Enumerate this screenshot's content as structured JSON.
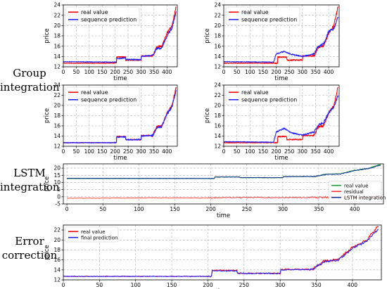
{
  "labels": {
    "group": [
      "Group",
      "integration"
    ],
    "lstm": [
      "LSTM",
      "integration"
    ],
    "error": [
      "Error",
      "correction"
    ]
  },
  "colors": {
    "real": "#ff0000",
    "prediction": "#2424ff",
    "residual": "#ff3333",
    "lstm_real": "#1f9e3a",
    "lstm_pred": "#1a3a9a",
    "grid": "#b0b0b0"
  },
  "chart_data": [
    {
      "id": "group-1",
      "type": "line",
      "xlabel": "time",
      "ylabel": "price",
      "xlim": [
        0,
        440
      ],
      "ylim": [
        12,
        24
      ],
      "xticks": [
        0,
        50,
        100,
        150,
        200,
        250,
        300,
        350,
        400
      ],
      "yticks": [
        12,
        14,
        16,
        18,
        20,
        22,
        24
      ],
      "grid": true,
      "legend": "top-left",
      "series": [
        {
          "name": "real value",
          "role": "real",
          "anchors": [
            [
              0,
              12.7
            ],
            [
              205,
              12.7
            ],
            [
              206,
              13.9
            ],
            [
              240,
              13.9
            ],
            [
              241,
              13.3
            ],
            [
              300,
              13.3
            ],
            [
              301,
              14.1
            ],
            [
              345,
              14.1
            ],
            [
              360,
              15.8
            ],
            [
              380,
              16.0
            ],
            [
              400,
              18.5
            ],
            [
              420,
              20.0
            ],
            [
              435,
              23.6
            ]
          ]
        },
        {
          "name": "sequence prediction",
          "role": "prediction",
          "anchors": [
            [
              0,
              13.0
            ],
            [
              205,
              12.9
            ],
            [
              206,
              13.6
            ],
            [
              240,
              13.7
            ],
            [
              241,
              13.4
            ],
            [
              300,
              13.4
            ],
            [
              301,
              14.0
            ],
            [
              345,
              14.2
            ],
            [
              360,
              15.5
            ],
            [
              380,
              15.7
            ],
            [
              400,
              18.0
            ],
            [
              420,
              19.6
            ],
            [
              435,
              22.5
            ]
          ]
        }
      ]
    },
    {
      "id": "group-2",
      "type": "line",
      "xlabel": "time",
      "ylabel": "price",
      "xlim": [
        0,
        440
      ],
      "ylim": [
        12,
        24
      ],
      "xticks": [
        0,
        50,
        100,
        150,
        200,
        250,
        300,
        350,
        400
      ],
      "yticks": [
        12,
        14,
        16,
        18,
        20,
        22,
        24
      ],
      "grid": true,
      "legend": "top-left",
      "series": [
        {
          "name": "real value",
          "role": "real",
          "anchors": [
            [
              0,
              12.7
            ],
            [
              205,
              12.7
            ],
            [
              206,
              13.9
            ],
            [
              240,
              13.9
            ],
            [
              241,
              13.3
            ],
            [
              300,
              13.3
            ],
            [
              301,
              14.1
            ],
            [
              345,
              14.1
            ],
            [
              360,
              15.8
            ],
            [
              380,
              16.0
            ],
            [
              400,
              18.5
            ],
            [
              420,
              20.0
            ],
            [
              435,
              23.6
            ]
          ]
        },
        {
          "name": "sequence prediction",
          "role": "prediction",
          "anchors": [
            [
              0,
              13.0
            ],
            [
              190,
              12.9
            ],
            [
              200,
              14.5
            ],
            [
              230,
              15.0
            ],
            [
              260,
              14.4
            ],
            [
              300,
              14.0
            ],
            [
              345,
              14.5
            ],
            [
              360,
              16.0
            ],
            [
              380,
              16.4
            ],
            [
              400,
              18.8
            ],
            [
              420,
              19.4
            ],
            [
              435,
              21.5
            ]
          ]
        }
      ]
    },
    {
      "id": "group-3",
      "type": "line",
      "xlabel": "time",
      "ylabel": "price",
      "xlim": [
        0,
        440
      ],
      "ylim": [
        12,
        24
      ],
      "xticks": [
        0,
        50,
        100,
        150,
        200,
        250,
        300,
        350,
        400
      ],
      "yticks": [
        12,
        14,
        16,
        18,
        20,
        22,
        24
      ],
      "grid": true,
      "legend": "top-left",
      "series": [
        {
          "name": "real value",
          "role": "real",
          "anchors": [
            [
              0,
              12.7
            ],
            [
              205,
              12.7
            ],
            [
              206,
              13.9
            ],
            [
              240,
              13.9
            ],
            [
              241,
              13.3
            ],
            [
              300,
              13.3
            ],
            [
              301,
              14.1
            ],
            [
              345,
              14.1
            ],
            [
              360,
              15.8
            ],
            [
              380,
              16.0
            ],
            [
              400,
              18.5
            ],
            [
              420,
              20.0
            ],
            [
              435,
              23.6
            ]
          ]
        },
        {
          "name": "sequence prediction",
          "role": "prediction",
          "anchors": [
            [
              0,
              12.7
            ],
            [
              205,
              12.7
            ],
            [
              206,
              13.8
            ],
            [
              240,
              13.8
            ],
            [
              241,
              13.3
            ],
            [
              300,
              13.3
            ],
            [
              301,
              14.0
            ],
            [
              345,
              14.1
            ],
            [
              360,
              15.6
            ],
            [
              380,
              15.9
            ],
            [
              400,
              18.3
            ],
            [
              420,
              19.8
            ],
            [
              435,
              22.8
            ]
          ]
        }
      ]
    },
    {
      "id": "group-4",
      "type": "line",
      "xlabel": "time",
      "ylabel": "price",
      "xlim": [
        0,
        440
      ],
      "ylim": [
        12,
        24
      ],
      "xticks": [
        0,
        50,
        100,
        150,
        200,
        250,
        300,
        350,
        400
      ],
      "yticks": [
        12,
        14,
        16,
        18,
        20,
        22,
        24
      ],
      "grid": true,
      "legend": "top-left",
      "series": [
        {
          "name": "real value",
          "role": "real",
          "anchors": [
            [
              0,
              12.7
            ],
            [
              205,
              12.7
            ],
            [
              206,
              13.9
            ],
            [
              240,
              13.9
            ],
            [
              241,
              13.3
            ],
            [
              300,
              13.3
            ],
            [
              301,
              14.1
            ],
            [
              345,
              14.1
            ],
            [
              360,
              15.8
            ],
            [
              380,
              16.0
            ],
            [
              400,
              18.5
            ],
            [
              420,
              20.0
            ],
            [
              435,
              23.6
            ]
          ]
        },
        {
          "name": "sequence prediction",
          "role": "prediction",
          "anchors": [
            [
              0,
              12.9
            ],
            [
              190,
              12.8
            ],
            [
              200,
              14.8
            ],
            [
              230,
              15.5
            ],
            [
              260,
              14.6
            ],
            [
              300,
              14.2
            ],
            [
              345,
              14.8
            ],
            [
              360,
              16.2
            ],
            [
              380,
              16.6
            ],
            [
              400,
              18.6
            ],
            [
              420,
              19.7
            ],
            [
              435,
              21.8
            ]
          ]
        }
      ]
    },
    {
      "id": "lstm",
      "type": "line",
      "xlabel": "time",
      "ylabel": "price",
      "xlim": [
        -5,
        440
      ],
      "ylim": [
        -5,
        23
      ],
      "xticks": [
        0,
        50,
        100,
        150,
        200,
        250,
        300,
        350,
        400
      ],
      "yticks": [
        -5,
        0,
        5,
        10,
        15,
        20
      ],
      "grid": true,
      "legend": "bottom-right",
      "series": [
        {
          "name": "real value",
          "role": "lstm_real",
          "anchors": [
            [
              0,
              12.7
            ],
            [
              205,
              12.7
            ],
            [
              206,
              13.9
            ],
            [
              240,
              13.9
            ],
            [
              241,
              13.3
            ],
            [
              300,
              13.3
            ],
            [
              301,
              14.1
            ],
            [
              345,
              14.1
            ],
            [
              360,
              15.8
            ],
            [
              380,
              16.0
            ],
            [
              400,
              18.5
            ],
            [
              420,
              20.0
            ],
            [
              435,
              22.5
            ]
          ]
        },
        {
          "name": "residual",
          "role": "residual",
          "anchors": [
            [
              0,
              -1.0
            ],
            [
              100,
              -0.8
            ],
            [
              200,
              -0.8
            ],
            [
              250,
              -0.5
            ],
            [
              300,
              -0.7
            ],
            [
              350,
              -0.4
            ],
            [
              400,
              -0.6
            ],
            [
              435,
              -0.3
            ]
          ]
        },
        {
          "name": "LSTM integration",
          "role": "lstm_pred",
          "anchors": [
            [
              0,
              12.9
            ],
            [
              205,
              12.8
            ],
            [
              206,
              13.8
            ],
            [
              240,
              13.8
            ],
            [
              241,
              13.4
            ],
            [
              300,
              13.4
            ],
            [
              301,
              14.0
            ],
            [
              345,
              14.2
            ],
            [
              360,
              15.6
            ],
            [
              380,
              15.9
            ],
            [
              400,
              18.3
            ],
            [
              420,
              19.8
            ],
            [
              435,
              22.0
            ]
          ]
        }
      ]
    },
    {
      "id": "error",
      "type": "line",
      "xlabel": "time",
      "ylabel": "price",
      "xlim": [
        0,
        440
      ],
      "ylim": [
        12,
        23
      ],
      "xticks": [
        0,
        50,
        100,
        150,
        200,
        250,
        300,
        350,
        400
      ],
      "yticks": [
        12,
        14,
        16,
        18,
        20,
        22
      ],
      "grid": true,
      "legend": "top-left",
      "series": [
        {
          "name": "real value",
          "role": "real",
          "anchors": [
            [
              0,
              12.7
            ],
            [
              205,
              12.7
            ],
            [
              206,
              13.9
            ],
            [
              240,
              13.9
            ],
            [
              241,
              13.3
            ],
            [
              300,
              13.3
            ],
            [
              301,
              14.1
            ],
            [
              345,
              14.1
            ],
            [
              360,
              15.8
            ],
            [
              380,
              16.0
            ],
            [
              400,
              18.5
            ],
            [
              420,
              20.0
            ],
            [
              435,
              22.8
            ]
          ]
        },
        {
          "name": "final prediction",
          "role": "prediction",
          "anchors": [
            [
              0,
              12.7
            ],
            [
              205,
              12.7
            ],
            [
              206,
              13.8
            ],
            [
              240,
              13.8
            ],
            [
              241,
              13.3
            ],
            [
              300,
              13.3
            ],
            [
              301,
              14.0
            ],
            [
              345,
              14.1
            ],
            [
              360,
              15.6
            ],
            [
              380,
              15.9
            ],
            [
              400,
              18.3
            ],
            [
              420,
              19.8
            ],
            [
              435,
              22.0
            ]
          ]
        }
      ]
    }
  ]
}
